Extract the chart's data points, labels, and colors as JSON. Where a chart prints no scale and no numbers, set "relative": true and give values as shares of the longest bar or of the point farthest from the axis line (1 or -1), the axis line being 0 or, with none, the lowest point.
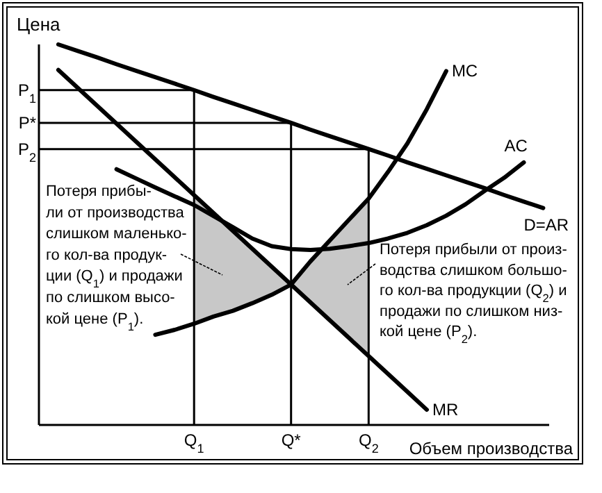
{
  "chart_data": {
    "type": "line",
    "relative": true,
    "xlabel": "Объем производства",
    "ylabel": "Цена",
    "categories": [
      null,
      null,
      null,
      null,
      null,
      null,
      null,
      null,
      "Q$_{1}$",
      null,
      null,
      null,
      null,
      "Q*",
      null,
      null,
      null,
      "Q$_{2}$",
      null,
      null,
      null,
      null,
      null,
      null,
      null,
      null,
      null
    ],
    "series": [
      {
        "name": "D=AR",
        "color": "#000000",
        "values": [
          null,
          1.0,
          0.983,
          0.966,
          0.948,
          0.931,
          0.914,
          0.897,
          0.88,
          0.862,
          0.845,
          0.828,
          0.811,
          0.794,
          0.776,
          0.759,
          0.742,
          0.725,
          0.708,
          0.69,
          0.673,
          0.656,
          0.639,
          0.622,
          0.604,
          0.587,
          0.57
        ]
      },
      {
        "name": "MR",
        "color": "#000000",
        "values": [
          null,
          0.933,
          0.886,
          0.839,
          0.792,
          0.745,
          0.698,
          0.651,
          0.604,
          0.557,
          0.51,
          0.463,
          0.416,
          0.369,
          0.322,
          0.275,
          0.228,
          0.181,
          0.134,
          0.087,
          0.04,
          null,
          null,
          null,
          null,
          null,
          null
        ]
      },
      {
        "name": "MC",
        "color": "#000000",
        "values": [
          null,
          null,
          null,
          null,
          null,
          null,
          0.237,
          0.25,
          0.266,
          0.285,
          0.3,
          0.32,
          0.342,
          0.369,
          0.43,
          0.485,
          0.54,
          0.595,
          0.665,
          0.74,
          0.83,
          0.93,
          null,
          null,
          null,
          null,
          null
        ]
      },
      {
        "name": "AC",
        "color": "#000000",
        "values": [
          null,
          null,
          null,
          null,
          0.672,
          0.648,
          0.624,
          0.601,
          0.578,
          0.549,
          0.52,
          0.49,
          0.47,
          0.462,
          0.46,
          0.463,
          0.47,
          0.478,
          0.49,
          0.505,
          0.525,
          0.55,
          0.58,
          0.616,
          0.65,
          0.69,
          null
        ]
      }
    ],
    "ref_lines": [
      {
        "axis": "x",
        "value": "Q$_{1}$"
      },
      {
        "axis": "x",
        "value": "Q*"
      },
      {
        "axis": "x",
        "value": "Q$_{2}$"
      },
      {
        "axis": "y",
        "value": 0.88,
        "label": "P$_{1}$"
      },
      {
        "axis": "y",
        "value": 0.794,
        "label": "P*"
      },
      {
        "axis": "y",
        "value": 0.725,
        "label": "P$_{2}$"
      }
    ],
    "annotations": [
      "Потеря прибы-\nли от производства\nслишком маленько-\nго кол-ва продук-\nции (Q$_{1}$) и продажи\nпо слишком высо-\nкой цене (P$_{1}$).",
      "Потеря прибыли от произ-\nводства слишком большо-\nго кол-ва продукции (Q$_{2}$) и\nпродажи по слишком низ-\nкой цене (P$_{2}$)."
    ]
  }
}
